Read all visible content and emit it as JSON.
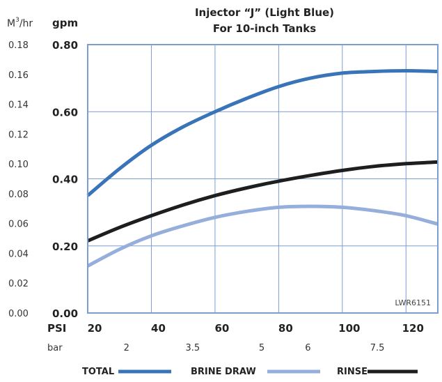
{
  "chart_data": {
    "type": "line",
    "title": "Injector “J” (Light Blue)",
    "subtitle": "For 10-inch Tanks",
    "code": "LWR6151",
    "xlabel": "PSI",
    "x2label": "bar",
    "ylabel": "gpm",
    "y2label": "M",
    "y2label_sup": "3",
    "y2label_suffix": "/hr",
    "xlim": [
      20,
      130
    ],
    "ylim": [
      0,
      0.8
    ],
    "grid": true,
    "x_ticks": [
      "20",
      "40",
      "60",
      "80",
      "100",
      "120"
    ],
    "x_tick_values": [
      20,
      40,
      60,
      80,
      100,
      120
    ],
    "bar_ticks": [
      "2",
      "3.5",
      "5",
      "6",
      "7.5"
    ],
    "bar_tick_values": [
      30,
      50.8,
      72.5,
      87,
      108.8
    ],
    "y_ticks": [
      "0.00",
      "0.20",
      "0.40",
      "0.60",
      "0.80"
    ],
    "y_tick_values": [
      0,
      0.2,
      0.4,
      0.6,
      0.8
    ],
    "y2_ticks": [
      "0.00",
      "0.02",
      "0.04",
      "0.06",
      "0.08",
      "0.10",
      "0.12",
      "0.14",
      "0.16",
      "0.18"
    ],
    "y2_tick_values": [
      0,
      0.02,
      0.04,
      0.06,
      0.08,
      0.1,
      0.12,
      0.14,
      0.16,
      0.18
    ],
    "y2_to_y_factor": 4.4444,
    "legend_position": "bottom",
    "series": [
      {
        "name": "TOTAL",
        "color": "#3a74b8",
        "x": [
          20,
          30,
          40,
          50,
          60,
          70,
          80,
          90,
          100,
          110,
          120,
          130
        ],
        "y": [
          0.35,
          0.43,
          0.5,
          0.555,
          0.6,
          0.64,
          0.675,
          0.7,
          0.715,
          0.72,
          0.722,
          0.72
        ]
      },
      {
        "name": "BRINE DRAW",
        "color": "#96aedb",
        "x": [
          20,
          30,
          40,
          50,
          60,
          70,
          80,
          90,
          100,
          110,
          120,
          130
        ],
        "y": [
          0.14,
          0.19,
          0.23,
          0.26,
          0.285,
          0.303,
          0.315,
          0.318,
          0.315,
          0.305,
          0.29,
          0.265
        ]
      },
      {
        "name": "RINSE",
        "color": "#1e1e1e",
        "x": [
          20,
          30,
          40,
          50,
          60,
          70,
          80,
          90,
          100,
          110,
          120,
          130
        ],
        "y": [
          0.215,
          0.255,
          0.29,
          0.322,
          0.35,
          0.373,
          0.393,
          0.41,
          0.425,
          0.437,
          0.445,
          0.45
        ]
      }
    ]
  }
}
